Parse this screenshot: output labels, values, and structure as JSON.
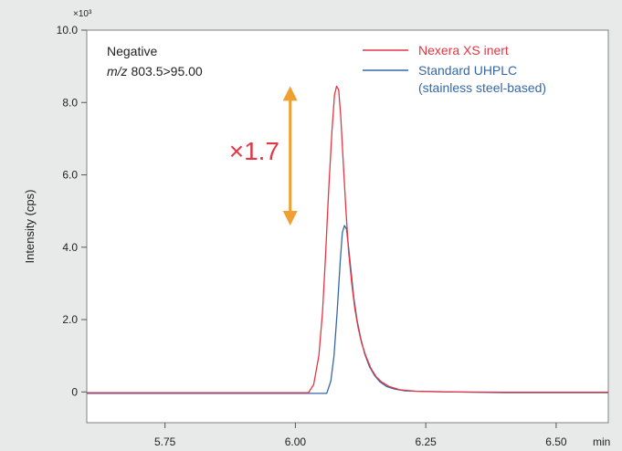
{
  "chart_data": {
    "type": "line",
    "xlabel": "",
    "xunit": "min",
    "ylabel": "Intensity (cps)",
    "yscale_label": "×10³",
    "xlim": [
      5.6,
      6.6
    ],
    "ylim": [
      -0.85,
      10.0
    ],
    "xticks": [
      5.75,
      6.0,
      6.25,
      6.5
    ],
    "xtick_labels": [
      "5.75",
      "6.00",
      "6.25",
      "6.50"
    ],
    "yticks": [
      0,
      2.0,
      4.0,
      6.0,
      8.0,
      10.0
    ],
    "ytick_labels": [
      "0",
      "2.0",
      "4.0",
      "6.0",
      "8.0",
      "10.0"
    ],
    "grid": false,
    "legend_position": "top-right",
    "annotation": {
      "mode_label": "Negative",
      "mz_label_italic": "m/z",
      "mz_label_value": " 803.5>95.00",
      "ratio_label": "×1.7",
      "ratio_color": "#e23744",
      "arrow_color": "#f0a033",
      "arrow_x": 5.99,
      "arrow_y_top": 8.45,
      "arrow_y_bottom": 4.6
    },
    "series": [
      {
        "name": "Nexera XS inert",
        "legend_lines": [
          "Nexera XS inert"
        ],
        "color": "#e23744",
        "points": [
          [
            5.6,
            -0.02
          ],
          [
            6.0,
            -0.02
          ],
          [
            6.025,
            -0.02
          ],
          [
            6.035,
            0.2
          ],
          [
            6.045,
            1.0
          ],
          [
            6.052,
            2.2
          ],
          [
            6.058,
            3.8
          ],
          [
            6.064,
            5.6
          ],
          [
            6.07,
            7.2
          ],
          [
            6.075,
            8.2
          ],
          [
            6.079,
            8.45
          ],
          [
            6.083,
            8.35
          ],
          [
            6.087,
            7.6
          ],
          [
            6.092,
            6.3
          ],
          [
            6.097,
            5.0
          ],
          [
            6.102,
            3.9
          ],
          [
            6.108,
            3.0
          ],
          [
            6.114,
            2.3
          ],
          [
            6.12,
            1.8
          ],
          [
            6.127,
            1.35
          ],
          [
            6.135,
            1.0
          ],
          [
            6.145,
            0.65
          ],
          [
            6.155,
            0.42
          ],
          [
            6.165,
            0.28
          ],
          [
            6.18,
            0.15
          ],
          [
            6.2,
            0.06
          ],
          [
            6.23,
            0.02
          ],
          [
            6.3,
            0.0
          ],
          [
            6.4,
            -0.01
          ],
          [
            6.6,
            -0.01
          ]
        ]
      },
      {
        "name": "Standard UHPLC (stainless steel-based)",
        "legend_lines": [
          "Standard UHPLC",
          "(stainless steel-based)"
        ],
        "color": "#3567a8",
        "points": [
          [
            5.6,
            -0.04
          ],
          [
            6.0,
            -0.04
          ],
          [
            6.06,
            -0.04
          ],
          [
            6.068,
            0.3
          ],
          [
            6.074,
            1.0
          ],
          [
            6.08,
            2.2
          ],
          [
            6.086,
            3.6
          ],
          [
            6.09,
            4.4
          ],
          [
            6.094,
            4.6
          ],
          [
            6.098,
            4.5
          ],
          [
            6.102,
            4.0
          ],
          [
            6.107,
            3.3
          ],
          [
            6.112,
            2.6
          ],
          [
            6.118,
            2.0
          ],
          [
            6.125,
            1.5
          ],
          [
            6.133,
            1.05
          ],
          [
            6.142,
            0.7
          ],
          [
            6.152,
            0.45
          ],
          [
            6.162,
            0.28
          ],
          [
            6.175,
            0.15
          ],
          [
            6.19,
            0.08
          ],
          [
            6.21,
            0.03
          ],
          [
            6.25,
            0.01
          ],
          [
            6.4,
            -0.02
          ],
          [
            6.6,
            -0.02
          ]
        ]
      }
    ]
  }
}
